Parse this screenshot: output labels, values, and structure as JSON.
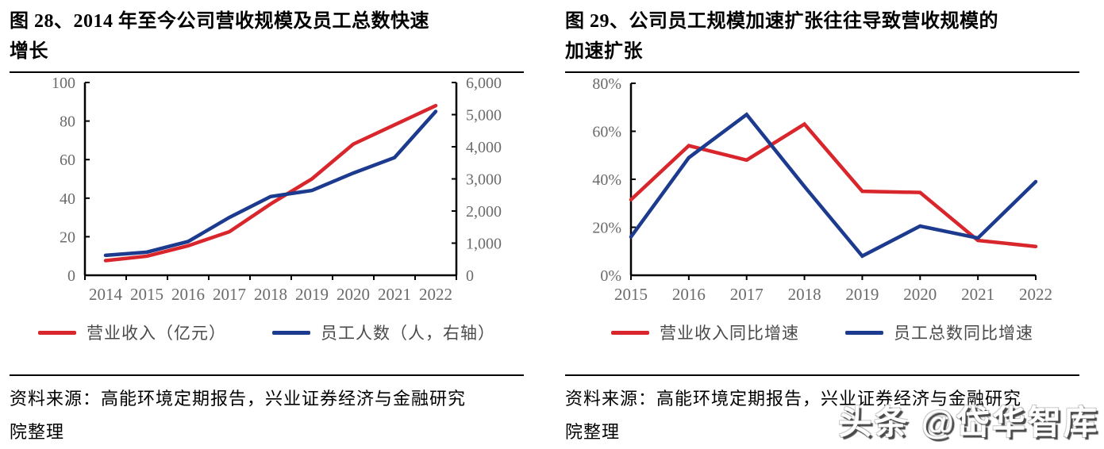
{
  "figures": [
    {
      "title": "图 28、2014 年至今公司营收规模及员工总数快速增长",
      "source": "资料来源：高能环境定期报告，兴业证券经济与金融研究院整理"
    },
    {
      "title": "图 29、公司员工规模加速扩张往往导致营收规模的加速扩张",
      "source": "资料来源：高能环境定期报告，兴业证券经济与金融研究院整理"
    }
  ],
  "watermark": {
    "text": "头条 @岱华智库"
  },
  "colors": {
    "revenue_red": "#D8262C",
    "employee_blue": "#1C3A8E",
    "axis_line": "#000000",
    "axis_label": "#6b6b6b",
    "legend_text": "#4a4a4a"
  },
  "chart_data": [
    {
      "type": "line",
      "title": "图 28、2014 年至今公司营收规模及员工总数快速增长",
      "categories": [
        "2014",
        "2015",
        "2016",
        "2017",
        "2018",
        "2019",
        "2020",
        "2021",
        "2022"
      ],
      "series": [
        {
          "name": "营业收入（亿元）",
          "axis": "left",
          "color": "#D8262C",
          "values": [
            7.6,
            9.9,
            15.3,
            22.6,
            37,
            50,
            68,
            78,
            88
          ]
        },
        {
          "name": "员工人数（人，右轴）",
          "axis": "right",
          "color": "#1C3A8E",
          "values": [
            620,
            720,
            1050,
            1800,
            2450,
            2640,
            3180,
            3660,
            5100
          ]
        }
      ],
      "left_axis": {
        "min": 0,
        "max": 100,
        "tick_labels": [
          "0",
          "20",
          "40",
          "60",
          "80",
          "100"
        ]
      },
      "right_axis": {
        "min": 0,
        "max": 6000,
        "tick_labels": [
          "0",
          "1,000",
          "2,000",
          "3,000",
          "4,000",
          "5,000",
          "6,000"
        ]
      },
      "grid": false,
      "legend_position": "bottom"
    },
    {
      "type": "line",
      "title": "图 29、公司员工规模加速扩张往往导致营收规模的加速扩张",
      "categories": [
        "2015",
        "2016",
        "2017",
        "2018",
        "2019",
        "2020",
        "2021",
        "2022"
      ],
      "series": [
        {
          "name": "营业收入同比增速",
          "axis": "left",
          "color": "#D8262C",
          "values": [
            31.5,
            54,
            48,
            63,
            35,
            34.5,
            14.5,
            12
          ]
        },
        {
          "name": "员工总数同比增速",
          "axis": "left",
          "color": "#1C3A8E",
          "values": [
            16,
            49,
            67,
            37,
            8,
            20.5,
            15.5,
            39
          ]
        }
      ],
      "left_axis": {
        "min": 0,
        "max": 80,
        "tick_labels": [
          "0%",
          "20%",
          "40%",
          "60%",
          "80%"
        ]
      },
      "grid": false,
      "legend_position": "bottom"
    }
  ]
}
